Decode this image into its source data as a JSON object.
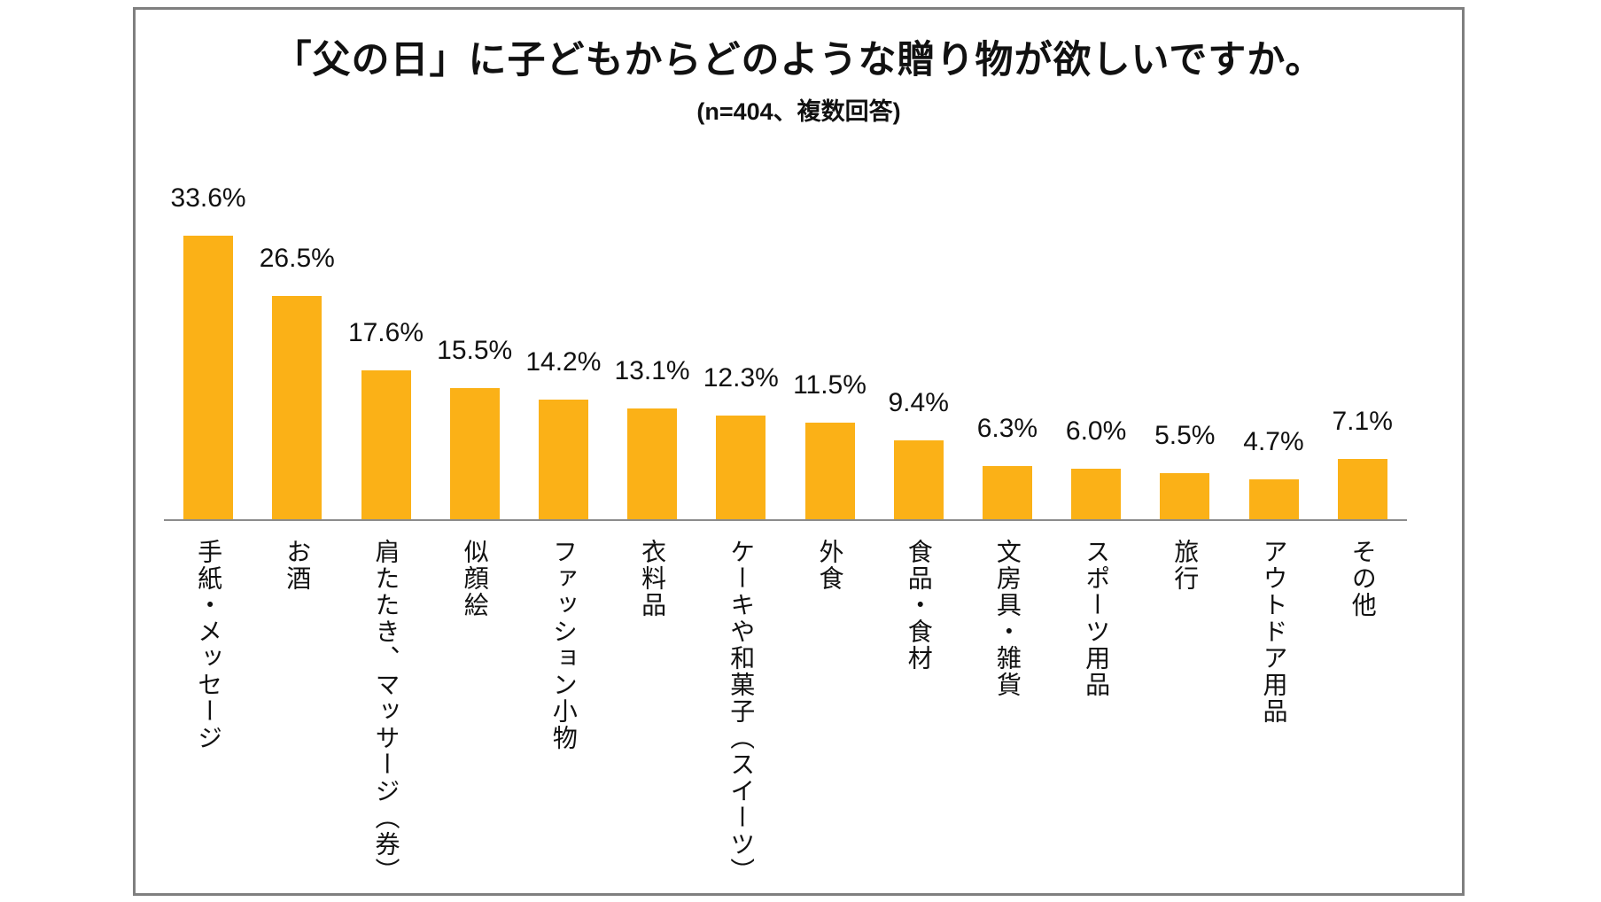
{
  "chart_data": {
    "type": "bar",
    "title": "「父の日」に子どもからどのような贈り物が欲しいですか。",
    "subtitle": "(n=404、複数回答)",
    "n": 404,
    "categories": [
      "手紙・メッセージ",
      "お酒",
      "肩たたき、マッサージ（券）",
      "似顔絵",
      "ファッション小物",
      "衣料品",
      "ケーキや和菓子（スイーツ）",
      "外食",
      "食品・食材",
      "文房具・雑貨",
      "スポーツ用品",
      "旅行",
      "アウトドア用品",
      "その他"
    ],
    "values": [
      33.6,
      26.5,
      17.6,
      15.5,
      14.2,
      13.1,
      12.3,
      11.5,
      9.4,
      6.3,
      6.0,
      5.5,
      4.7,
      7.1
    ],
    "value_labels": [
      "33.6%",
      "26.5%",
      "17.6%",
      "15.5%",
      "14.2%",
      "13.1%",
      "12.3%",
      "11.5%",
      "9.4%",
      "6.3%",
      "6.0%",
      "5.5%",
      "4.7%",
      "7.1%"
    ],
    "xlabel": "",
    "ylabel": "",
    "ylim": [
      0,
      40
    ],
    "grid": false,
    "legend": false,
    "value_label_position": "above-bars",
    "category_label_orientation": "vertical",
    "bar_color": "#FBB117",
    "axis_color": "#8C8C8C",
    "text_color": "#111111",
    "frame_border_color": "#7F7F7F",
    "background_color": "#FFFFFF"
  }
}
